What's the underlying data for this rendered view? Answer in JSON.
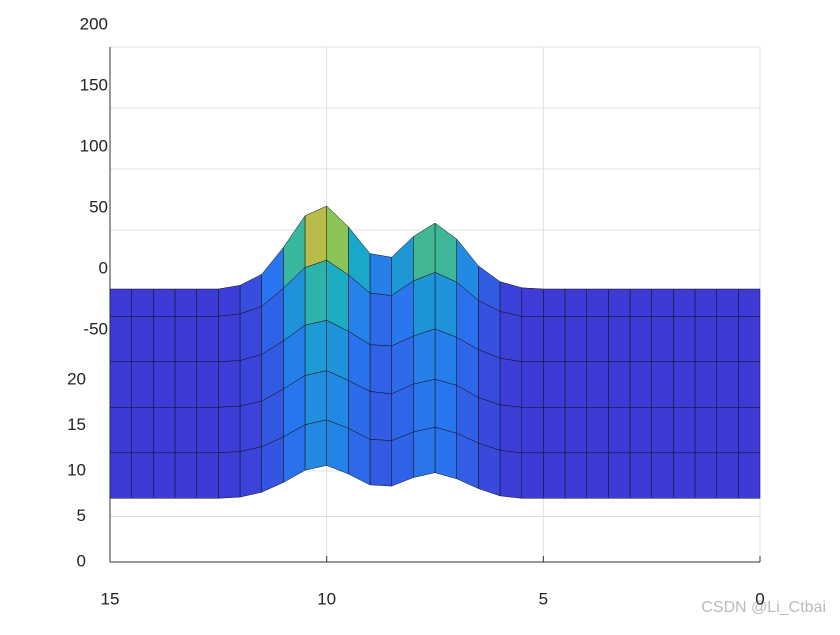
{
  "chart_data": {
    "type": "surface",
    "xlim": [
      15,
      0
    ],
    "xticks": [
      15,
      10,
      5,
      0
    ],
    "ylim": [
      0,
      20
    ],
    "yticks": [
      0,
      5,
      10,
      15,
      20
    ],
    "zlim": [
      -50,
      200
    ],
    "zticks": [
      -50,
      0,
      50,
      100,
      150,
      200
    ],
    "grid": true,
    "x": [
      0,
      0.5,
      1,
      1.5,
      2,
      2.5,
      3,
      3.5,
      4,
      4.5,
      5,
      5.5,
      6,
      6.5,
      7,
      7.5,
      8,
      8.5,
      9,
      9.5,
      10,
      10.5,
      11,
      11.5,
      12,
      12.5,
      13,
      13.5,
      14,
      14.5,
      15
    ],
    "rows": [
      {
        "y": 30,
        "z": [
          0,
          0,
          0,
          0,
          0,
          0,
          0,
          0,
          0,
          0,
          0,
          1,
          6,
          19,
          41,
          54,
          43,
          26,
          29,
          51,
          68,
          60,
          34,
          12,
          3,
          0,
          0,
          0,
          0,
          0,
          0
        ]
      },
      {
        "y": 27,
        "z": [
          0,
          0,
          0,
          0,
          0,
          0,
          0,
          0,
          0,
          0,
          0,
          0,
          4,
          13,
          28,
          36,
          29,
          17,
          19,
          34,
          46,
          40,
          23,
          8,
          2,
          0,
          0,
          0,
          0,
          0,
          0
        ]
      },
      {
        "y": 22,
        "z": [
          0,
          0,
          0,
          0,
          0,
          0,
          0,
          0,
          0,
          0,
          0,
          0,
          3,
          10,
          20,
          27,
          21,
          13,
          14,
          25,
          34,
          30,
          17,
          6,
          1,
          0,
          0,
          0,
          0,
          0,
          0
        ]
      },
      {
        "y": 17,
        "z": [
          0,
          0,
          0,
          0,
          0,
          0,
          0,
          0,
          0,
          0,
          0,
          0,
          2,
          8,
          18,
          23,
          19,
          11,
          13,
          22,
          30,
          26,
          15,
          5,
          1,
          0,
          0,
          0,
          0,
          0,
          0
        ]
      },
      {
        "y": 12,
        "z": [
          0,
          0,
          0,
          0,
          0,
          0,
          0,
          0,
          0,
          0,
          0,
          0,
          2,
          8,
          16,
          21,
          17,
          10,
          11,
          20,
          27,
          23,
          13,
          5,
          1,
          0,
          0,
          0,
          0,
          0,
          0
        ]
      },
      {
        "y": 7,
        "z": [
          0,
          0,
          0,
          0,
          0,
          0,
          0,
          0,
          0,
          0,
          0,
          0,
          2,
          8,
          16,
          21,
          17,
          10,
          11,
          20,
          27,
          23,
          13,
          5,
          1,
          0,
          0,
          0,
          0,
          0,
          0
        ]
      }
    ],
    "watermark": "CSDN @Li_Ctbai"
  }
}
